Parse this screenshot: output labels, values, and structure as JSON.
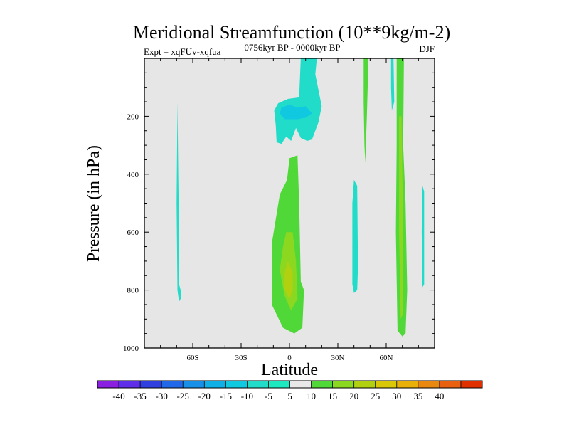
{
  "chart_data": {
    "type": "heatmap",
    "title": "Meridional Streamfunction (10**9kg/m-2)",
    "subtitle": "0756kyr BP - 0000kyr BP",
    "left_label": "Expt = xqFUv-xqfua",
    "right_label": "DJF",
    "xlabel": "Latitude",
    "ylabel": "Pressure (in hPa)",
    "xlim": [
      -90,
      90
    ],
    "ylim": [
      1000,
      0
    ],
    "x_ticks": [
      {
        "value": -60,
        "label": "60S"
      },
      {
        "value": -30,
        "label": "30S"
      },
      {
        "value": 0,
        "label": "0"
      },
      {
        "value": 30,
        "label": "30N"
      },
      {
        "value": 60,
        "label": "60N"
      }
    ],
    "y_ticks": [
      {
        "value": 200,
        "label": "200"
      },
      {
        "value": 400,
        "label": "400"
      },
      {
        "value": 600,
        "label": "600"
      },
      {
        "value": 800,
        "label": "800"
      },
      {
        "value": 1000,
        "label": "1000"
      }
    ],
    "background_color": "#e6e6e6",
    "colorbar": {
      "levels": [
        -40,
        -35,
        -30,
        -25,
        -20,
        -15,
        -10,
        -5,
        5,
        10,
        15,
        20,
        25,
        30,
        35,
        40
      ],
      "labels": [
        "-40",
        "-35",
        "-30",
        "-25",
        "-20",
        "-15",
        "-10",
        "-5",
        "5",
        "10",
        "15",
        "20",
        "25",
        "30",
        "35",
        "40"
      ],
      "colors": [
        "#8a20e0",
        "#5f2ee8",
        "#3040e0",
        "#2068e8",
        "#1890e8",
        "#10b0e6",
        "#10c8e0",
        "#20dcc8",
        "#1ee8c0",
        "#e8e8e8",
        "#50d838",
        "#8cd820",
        "#b0d010",
        "#d8c808",
        "#e8b008",
        "#e88810",
        "#e86010",
        "#e03000"
      ]
    },
    "regions": [
      {
        "name": "south-polar-cell",
        "value_range": [
          -10,
          -5
        ],
        "color": "#20dcc8",
        "points": [
          [
            -69.5,
            150
          ],
          [
            -69,
            400
          ],
          [
            -68.5,
            600
          ],
          [
            -68.5,
            780
          ],
          [
            -67.5,
            800
          ],
          [
            -67.5,
            830
          ],
          [
            -68.5,
            840
          ],
          [
            -69.5,
            800
          ],
          [
            -70,
            500
          ]
        ]
      },
      {
        "name": "tropical-upper-negative",
        "value_range": [
          -10,
          -5
        ],
        "color": "#20dcc8",
        "points": [
          [
            -7,
            155
          ],
          [
            -1,
            140
          ],
          [
            6,
            135
          ],
          [
            7,
            0
          ],
          [
            17,
            0
          ],
          [
            16,
            55
          ],
          [
            20,
            165
          ],
          [
            18,
            220
          ],
          [
            14,
            280
          ],
          [
            11,
            285
          ],
          [
            7,
            275
          ],
          [
            4,
            240
          ],
          [
            1,
            285
          ],
          [
            -2,
            270
          ],
          [
            -5,
            295
          ],
          [
            -8,
            290
          ],
          [
            -8.5,
            230
          ],
          [
            -9.5,
            180
          ]
        ]
      },
      {
        "name": "tropical-upper-core",
        "value_range": [
          -15,
          -10
        ],
        "color": "#10c8e0",
        "points": [
          [
            -5,
            170
          ],
          [
            0,
            160
          ],
          [
            5,
            170
          ],
          [
            10,
            165
          ],
          [
            14,
            190
          ],
          [
            10,
            205
          ],
          [
            5,
            210
          ],
          [
            -3,
            210
          ],
          [
            -6,
            190
          ]
        ]
      },
      {
        "name": "tropical-lower-positive",
        "value_range": [
          5,
          10
        ],
        "color": "#50d838",
        "points": [
          [
            0,
            345
          ],
          [
            5,
            335
          ],
          [
            6,
            500
          ],
          [
            7,
            770
          ],
          [
            9,
            800
          ],
          [
            8,
            930
          ],
          [
            3,
            950
          ],
          [
            -4,
            930
          ],
          [
            -11,
            850
          ],
          [
            -11,
            640
          ],
          [
            -6,
            470
          ],
          [
            -1.5,
            420
          ]
        ]
      },
      {
        "name": "tropical-lower-core",
        "value_range": [
          10,
          15
        ],
        "color": "#8cd820",
        "points": [
          [
            -2,
            600
          ],
          [
            2,
            600
          ],
          [
            4,
            700
          ],
          [
            5,
            830
          ],
          [
            1,
            870
          ],
          [
            -3,
            820
          ],
          [
            -6,
            730
          ],
          [
            -4,
            650
          ]
        ]
      },
      {
        "name": "tropical-lower-inner",
        "value_range": [
          15,
          20
        ],
        "color": "#b0d010",
        "points": [
          [
            -1,
            700
          ],
          [
            2,
            740
          ],
          [
            2,
            800
          ],
          [
            0,
            830
          ],
          [
            -3,
            800
          ],
          [
            -3,
            740
          ]
        ]
      },
      {
        "name": "mid-north-negative",
        "value_range": [
          -10,
          -5
        ],
        "color": "#20dcc8",
        "points": [
          [
            40,
            420
          ],
          [
            42,
            440
          ],
          [
            42.5,
            720
          ],
          [
            42,
            800
          ],
          [
            40,
            810
          ],
          [
            39,
            780
          ],
          [
            39,
            500
          ]
        ]
      },
      {
        "name": "north-narrow-positive",
        "value_range": [
          5,
          10
        ],
        "color": "#50d838",
        "points": [
          [
            46,
            0
          ],
          [
            49,
            0
          ],
          [
            48,
            200
          ],
          [
            47,
            360
          ],
          [
            46.5,
            300
          ],
          [
            46,
            150
          ]
        ]
      },
      {
        "name": "north-narrow-negative",
        "value_range": [
          -10,
          -5
        ],
        "color": "#20dcc8",
        "points": [
          [
            63,
            0
          ],
          [
            64.5,
            0
          ],
          [
            65,
            150
          ],
          [
            63.5,
            180
          ],
          [
            63,
            100
          ]
        ]
      },
      {
        "name": "north-subpolar-positive",
        "value_range": [
          5,
          10
        ],
        "color": "#50d838",
        "points": [
          [
            66.5,
            0
          ],
          [
            71,
            0
          ],
          [
            70.5,
            300
          ],
          [
            72,
            500
          ],
          [
            73,
            800
          ],
          [
            72,
            950
          ],
          [
            70,
            960
          ],
          [
            67,
            940
          ],
          [
            66,
            600
          ],
          [
            66.5,
            300
          ]
        ]
      },
      {
        "name": "north-subpolar-core",
        "value_range": [
          10,
          15
        ],
        "color": "#8cd820",
        "points": [
          [
            68,
            200
          ],
          [
            69.5,
            200
          ],
          [
            70.5,
            600
          ],
          [
            70.5,
            880
          ],
          [
            69,
            900
          ],
          [
            68,
            600
          ]
        ]
      },
      {
        "name": "north-polar-negative",
        "value_range": [
          -10,
          -5
        ],
        "color": "#20dcc8",
        "points": [
          [
            82.5,
            440
          ],
          [
            83.5,
            460
          ],
          [
            83.5,
            780
          ],
          [
            82.5,
            790
          ],
          [
            82,
            600
          ]
        ]
      }
    ]
  }
}
